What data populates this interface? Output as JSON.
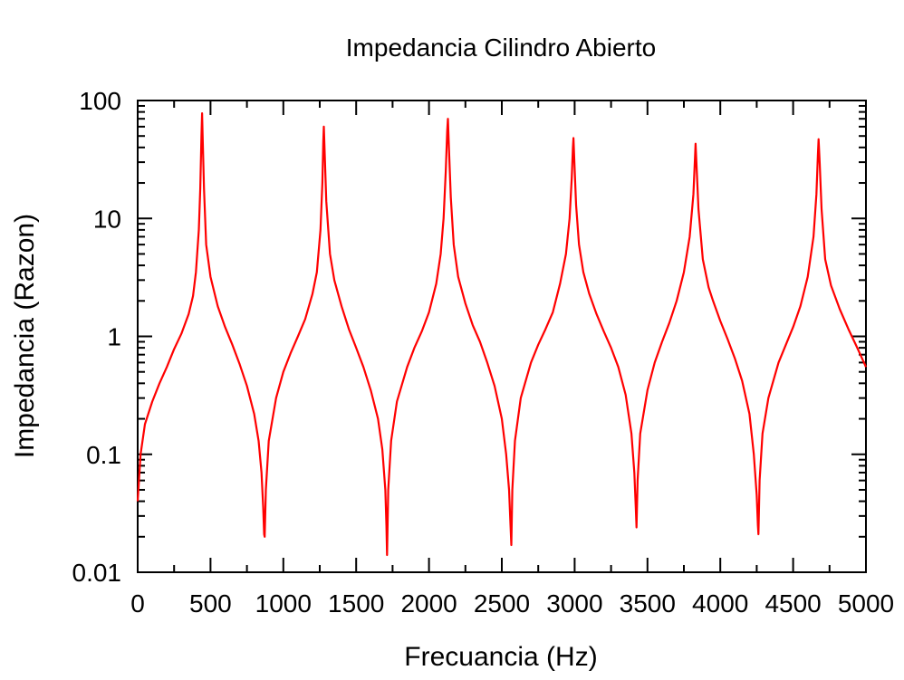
{
  "chart_data": {
    "type": "line",
    "title": "Impedancia Cilindro Abierto",
    "xlabel": "Frecuancia (Hz)",
    "ylabel": "Impedancia (Razon)",
    "xlim": [
      0,
      5000
    ],
    "ylim": [
      0.01,
      100
    ],
    "yscale": "log",
    "grid": false,
    "legend": "none",
    "x_ticks": [
      {
        "value": 0,
        "label": "0"
      },
      {
        "value": 500,
        "label": "500"
      },
      {
        "value": 1000,
        "label": "1000"
      },
      {
        "value": 1500,
        "label": "1500"
      },
      {
        "value": 2000,
        "label": "2000"
      },
      {
        "value": 2500,
        "label": "2500"
      },
      {
        "value": 3000,
        "label": "3000"
      },
      {
        "value": 3500,
        "label": "3500"
      },
      {
        "value": 4000,
        "label": "4000"
      },
      {
        "value": 4500,
        "label": "4500"
      },
      {
        "value": 5000,
        "label": "5000"
      }
    ],
    "y_ticks": [
      {
        "value": 0.01,
        "label": "0.01"
      },
      {
        "value": 0.1,
        "label": "0.1"
      },
      {
        "value": 1,
        "label": "1"
      },
      {
        "value": 10,
        "label": "10"
      },
      {
        "value": 100,
        "label": "100"
      }
    ],
    "series": [
      {
        "color": "#ff0000",
        "points": [
          [
            0,
            0.04
          ],
          [
            20,
            0.1
          ],
          [
            50,
            0.18
          ],
          [
            100,
            0.28
          ],
          [
            150,
            0.4
          ],
          [
            200,
            0.55
          ],
          [
            250,
            0.78
          ],
          [
            300,
            1.05
          ],
          [
            350,
            1.55
          ],
          [
            380,
            2.2
          ],
          [
            400,
            3.5
          ],
          [
            420,
            8
          ],
          [
            430,
            18
          ],
          [
            438,
            50
          ],
          [
            442,
            78
          ],
          [
            446,
            50
          ],
          [
            455,
            18
          ],
          [
            470,
            6
          ],
          [
            500,
            3.2
          ],
          [
            550,
            1.8
          ],
          [
            600,
            1.2
          ],
          [
            650,
            0.85
          ],
          [
            700,
            0.58
          ],
          [
            750,
            0.38
          ],
          [
            800,
            0.22
          ],
          [
            830,
            0.13
          ],
          [
            850,
            0.07
          ],
          [
            862,
            0.035
          ],
          [
            868,
            0.021
          ],
          [
            872,
            0.02
          ],
          [
            880,
            0.05
          ],
          [
            900,
            0.13
          ],
          [
            950,
            0.3
          ],
          [
            1000,
            0.5
          ],
          [
            1050,
            0.72
          ],
          [
            1100,
            1.0
          ],
          [
            1150,
            1.4
          ],
          [
            1200,
            2.3
          ],
          [
            1230,
            3.5
          ],
          [
            1255,
            8
          ],
          [
            1268,
            20
          ],
          [
            1274,
            45
          ],
          [
            1278,
            60
          ],
          [
            1284,
            35
          ],
          [
            1295,
            14
          ],
          [
            1320,
            5
          ],
          [
            1350,
            3
          ],
          [
            1400,
            1.8
          ],
          [
            1450,
            1.15
          ],
          [
            1500,
            0.8
          ],
          [
            1550,
            0.55
          ],
          [
            1600,
            0.35
          ],
          [
            1650,
            0.2
          ],
          [
            1680,
            0.11
          ],
          [
            1700,
            0.05
          ],
          [
            1708,
            0.025
          ],
          [
            1712,
            0.014
          ],
          [
            1720,
            0.05
          ],
          [
            1740,
            0.13
          ],
          [
            1780,
            0.28
          ],
          [
            1850,
            0.55
          ],
          [
            1900,
            0.8
          ],
          [
            1950,
            1.1
          ],
          [
            2000,
            1.6
          ],
          [
            2050,
            2.8
          ],
          [
            2080,
            5
          ],
          [
            2100,
            10
          ],
          [
            2115,
            25
          ],
          [
            2125,
            55
          ],
          [
            2130,
            70
          ],
          [
            2137,
            40
          ],
          [
            2150,
            15
          ],
          [
            2170,
            6
          ],
          [
            2200,
            3.2
          ],
          [
            2250,
            1.9
          ],
          [
            2300,
            1.25
          ],
          [
            2350,
            0.9
          ],
          [
            2400,
            0.6
          ],
          [
            2450,
            0.38
          ],
          [
            2500,
            0.2
          ],
          [
            2530,
            0.1
          ],
          [
            2550,
            0.05
          ],
          [
            2560,
            0.025
          ],
          [
            2565,
            0.017
          ],
          [
            2572,
            0.05
          ],
          [
            2590,
            0.13
          ],
          [
            2630,
            0.3
          ],
          [
            2700,
            0.6
          ],
          [
            2750,
            0.85
          ],
          [
            2800,
            1.15
          ],
          [
            2850,
            1.6
          ],
          [
            2900,
            2.8
          ],
          [
            2940,
            5
          ],
          [
            2965,
            10
          ],
          [
            2980,
            22
          ],
          [
            2988,
            40
          ],
          [
            2992,
            48
          ],
          [
            2998,
            30
          ],
          [
            3010,
            13
          ],
          [
            3030,
            6
          ],
          [
            3060,
            3.5
          ],
          [
            3100,
            2.3
          ],
          [
            3150,
            1.55
          ],
          [
            3200,
            1.1
          ],
          [
            3250,
            0.8
          ],
          [
            3300,
            0.55
          ],
          [
            3350,
            0.32
          ],
          [
            3390,
            0.15
          ],
          [
            3410,
            0.07
          ],
          [
            3420,
            0.035
          ],
          [
            3425,
            0.024
          ],
          [
            3432,
            0.06
          ],
          [
            3450,
            0.15
          ],
          [
            3500,
            0.35
          ],
          [
            3550,
            0.6
          ],
          [
            3600,
            0.9
          ],
          [
            3650,
            1.3
          ],
          [
            3700,
            2.0
          ],
          [
            3750,
            3.5
          ],
          [
            3790,
            7
          ],
          [
            3815,
            16
          ],
          [
            3826,
            32
          ],
          [
            3830,
            43
          ],
          [
            3836,
            30
          ],
          [
            3850,
            12
          ],
          [
            3880,
            4.5
          ],
          [
            3920,
            2.6
          ],
          [
            3950,
            2.0
          ],
          [
            4000,
            1.35
          ],
          [
            4050,
            0.95
          ],
          [
            4100,
            0.65
          ],
          [
            4150,
            0.42
          ],
          [
            4200,
            0.22
          ],
          [
            4230,
            0.1
          ],
          [
            4250,
            0.045
          ],
          [
            4258,
            0.025
          ],
          [
            4262,
            0.021
          ],
          [
            4270,
            0.06
          ],
          [
            4290,
            0.15
          ],
          [
            4330,
            0.3
          ],
          [
            4400,
            0.6
          ],
          [
            4450,
            0.85
          ],
          [
            4500,
            1.2
          ],
          [
            4550,
            1.8
          ],
          [
            4600,
            3.2
          ],
          [
            4640,
            7
          ],
          [
            4660,
            16
          ],
          [
            4670,
            34
          ],
          [
            4675,
            47
          ],
          [
            4682,
            30
          ],
          [
            4695,
            12
          ],
          [
            4720,
            4.5
          ],
          [
            4760,
            2.7
          ],
          [
            4820,
            1.7
          ],
          [
            4880,
            1.15
          ],
          [
            4940,
            0.8
          ],
          [
            5000,
            0.55
          ]
        ]
      }
    ]
  }
}
